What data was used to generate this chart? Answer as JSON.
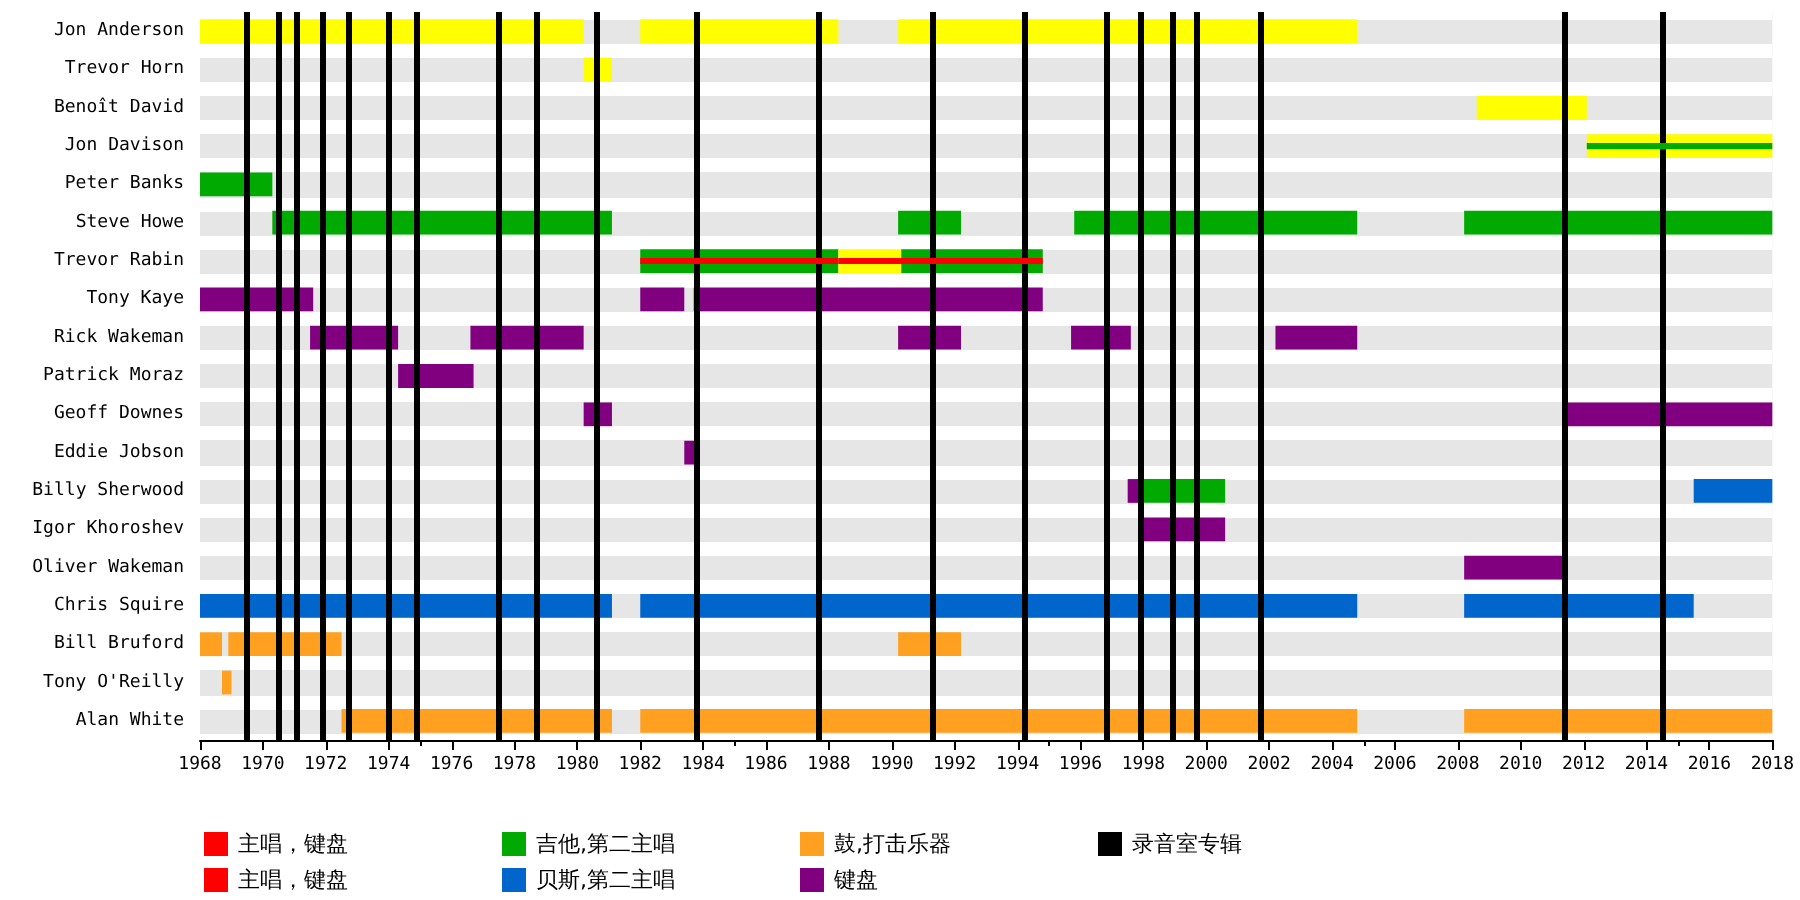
{
  "chart_data": {
    "type": "bar",
    "orientation": "horizontal",
    "grid": "y",
    "legend": "bottom",
    "categories": [
      "Jon Anderson",
      "Trevor Horn",
      "Benoît David",
      "Jon Davison",
      "Peter Banks",
      "Steve Howe",
      "Trevor Rabin",
      "Tony Kaye",
      "Rick Wakeman",
      "Patrick Moraz",
      "Geoff Downes",
      "Eddie Jobson",
      "Billy Sherwood",
      "Igor Khoroshev",
      "Oliver Wakeman",
      "Chris Squire",
      "Bill Bruford",
      "Tony O'Reilly",
      "Alan White"
    ],
    "xlim": [
      1968,
      2018
    ],
    "xticks": [
      1968,
      1970,
      1972,
      1974,
      1976,
      1978,
      1980,
      1982,
      1984,
      1986,
      1988,
      1990,
      1992,
      1994,
      1996,
      1998,
      2000,
      2002,
      2004,
      2006,
      2008,
      2010,
      2012,
      2014,
      2016,
      2018
    ],
    "series": [
      {
        "name": "主唱，键盘",
        "color": "#ff0000",
        "base": [
          null,
          null,
          null,
          null,
          null,
          null,
          1982.0,
          null,
          null,
          null,
          null,
          null,
          null,
          null,
          null,
          null,
          null,
          null,
          null
        ],
        "values": [
          null,
          null,
          null,
          null,
          null,
          null,
          6.3,
          null,
          null,
          null,
          null,
          null,
          null,
          null,
          null,
          null,
          null,
          null,
          null
        ]
      },
      {
        "name": "主唱，键盘",
        "color": "#ff0000",
        "base": [
          null,
          null,
          null,
          null,
          null,
          null,
          1988.3,
          null,
          null,
          null,
          null,
          null,
          null,
          null,
          null,
          null,
          null,
          null,
          null
        ],
        "values": [
          null,
          null,
          null,
          null,
          null,
          null,
          6.5,
          null,
          null,
          null,
          null,
          null,
          null,
          null,
          null,
          null,
          null,
          null,
          null
        ]
      },
      {
        "color": "#00aa00",
        "base": [
          null,
          null,
          null,
          2012.1,
          null,
          null,
          null,
          null,
          null,
          null,
          null,
          null,
          null,
          null,
          null,
          null,
          null,
          null,
          null
        ],
        "values": [
          null,
          null,
          null,
          5.9,
          null,
          null,
          null,
          null,
          null,
          null,
          null,
          null,
          null,
          null,
          null,
          null,
          null,
          null,
          null
        ]
      },
      {
        "name": "吉他,第二主唱",
        "color": "#00aa00",
        "base": [
          null,
          null,
          null,
          null,
          1968.0,
          1970.3,
          1982.0,
          null,
          null,
          null,
          null,
          null,
          1998.0,
          null,
          null,
          null,
          null,
          null,
          null
        ],
        "values": [
          null,
          null,
          null,
          null,
          2.3,
          10.8,
          6.3,
          null,
          null,
          null,
          null,
          null,
          2.6,
          null,
          null,
          null,
          null,
          null,
          null
        ]
      },
      {
        "name": "贝斯,第二主唱",
        "color": "#0066cc",
        "base": [
          null,
          null,
          null,
          null,
          null,
          null,
          null,
          null,
          null,
          null,
          null,
          null,
          2015.5,
          null,
          null,
          1968.0,
          null,
          null,
          null
        ],
        "values": [
          null,
          null,
          null,
          null,
          null,
          null,
          null,
          null,
          null,
          null,
          null,
          null,
          2.5,
          null,
          null,
          13.1,
          null,
          null,
          null
        ]
      },
      {
        "name": "鼓,打击乐器",
        "color": "#ffa020",
        "base": [
          null,
          null,
          null,
          null,
          null,
          null,
          null,
          null,
          null,
          null,
          null,
          null,
          null,
          null,
          null,
          null,
          1968.0,
          1968.7,
          1972.5
        ],
        "values": [
          null,
          null,
          null,
          null,
          null,
          null,
          null,
          null,
          null,
          null,
          null,
          null,
          null,
          null,
          null,
          null,
          0.7,
          0.3,
          8.6
        ]
      },
      {
        "name": "键盘",
        "color": "#800080",
        "base": [
          null,
          null,
          null,
          null,
          null,
          null,
          null,
          1968.0,
          1971.5,
          1974.3,
          1980.2,
          1983.4,
          1997.5,
          1998.0,
          2008.2,
          null,
          null,
          null,
          null
        ],
        "values": [
          null,
          null,
          null,
          null,
          null,
          null,
          null,
          3.6,
          2.8,
          2.4,
          0.9,
          0.4,
          0.5,
          2.6,
          3.2,
          null,
          null,
          null,
          null
        ]
      },
      {
        "color": "#ffff00",
        "base": [
          1968.0,
          1980.2,
          2008.6,
          2012.1,
          null,
          null,
          null,
          null,
          null,
          null,
          null,
          null,
          null,
          null,
          null,
          null,
          null,
          null,
          null
        ],
        "values": [
          12.2,
          0.9,
          3.5,
          5.9,
          null,
          null,
          null,
          null,
          null,
          null,
          null,
          null,
          null,
          null,
          null,
          null,
          null,
          null,
          null
        ]
      },
      {
        "color": "#ffff00",
        "base": [
          1982.0,
          null,
          null,
          null,
          null,
          null,
          1988.3,
          null,
          null,
          null,
          null,
          null,
          null,
          null,
          null,
          null,
          null,
          null,
          null
        ],
        "values": [
          6.3,
          null,
          null,
          null,
          null,
          null,
          2.0,
          null,
          null,
          null,
          null,
          null,
          null,
          null,
          null,
          null,
          null,
          null,
          null
        ]
      },
      {
        "color": "#ffff00",
        "base": [
          1990.2,
          null,
          null,
          null,
          null,
          null,
          null,
          null,
          null,
          null,
          null,
          null,
          null,
          null,
          null,
          null,
          null,
          null,
          null
        ],
        "values": [
          14.6,
          null,
          null,
          null,
          null,
          null,
          null,
          null,
          null,
          null,
          null,
          null,
          null,
          null,
          null,
          null,
          null,
          null,
          null
        ]
      },
      {
        "color": "#00aa00",
        "base": [
          null,
          null,
          null,
          null,
          null,
          1990.2,
          1990.3,
          null,
          null,
          null,
          null,
          null,
          null,
          null,
          null,
          null,
          null,
          null,
          null
        ],
        "values": [
          null,
          null,
          null,
          null,
          null,
          2.0,
          4.5,
          null,
          null,
          null,
          null,
          null,
          null,
          null,
          null,
          null,
          null,
          null,
          null
        ]
      },
      {
        "color": "#00aa00",
        "base": [
          null,
          null,
          null,
          null,
          null,
          1995.8,
          null,
          null,
          null,
          null,
          null,
          null,
          null,
          null,
          null,
          null,
          null,
          null,
          null
        ],
        "values": [
          null,
          null,
          null,
          null,
          null,
          9.0,
          null,
          null,
          null,
          null,
          null,
          null,
          null,
          null,
          null,
          null,
          null,
          null,
          null
        ]
      },
      {
        "color": "#00aa00",
        "base": [
          null,
          null,
          null,
          null,
          null,
          2008.2,
          null,
          null,
          null,
          null,
          null,
          null,
          null,
          null,
          null,
          null,
          null,
          null,
          null
        ],
        "values": [
          null,
          null,
          null,
          null,
          null,
          9.8,
          null,
          null,
          null,
          null,
          null,
          null,
          null,
          null,
          null,
          null,
          null,
          null,
          null
        ]
      },
      {
        "color": "#800080",
        "base": [
          null,
          null,
          null,
          null,
          null,
          null,
          null,
          1982.0,
          1976.6,
          null,
          2011.4,
          null,
          null,
          null,
          null,
          null,
          null,
          null,
          null
        ],
        "values": [
          null,
          null,
          null,
          null,
          null,
          null,
          null,
          1.4,
          3.6,
          null,
          6.6,
          null,
          null,
          null,
          null,
          null,
          null,
          null,
          null
        ]
      },
      {
        "color": "#800080",
        "base": [
          null,
          null,
          null,
          null,
          null,
          null,
          null,
          1983.7,
          1990.2,
          null,
          null,
          null,
          null,
          null,
          null,
          null,
          null,
          null,
          null
        ],
        "values": [
          null,
          null,
          null,
          null,
          null,
          null,
          null,
          11.1,
          2.0,
          null,
          null,
          null,
          null,
          null,
          null,
          null,
          null,
          null,
          null
        ]
      },
      {
        "color": "#800080",
        "base": [
          null,
          null,
          null,
          null,
          null,
          null,
          null,
          null,
          1995.7,
          null,
          null,
          null,
          null,
          null,
          null,
          null,
          null,
          null,
          null
        ],
        "values": [
          null,
          null,
          null,
          null,
          null,
          null,
          null,
          null,
          1.9,
          null,
          null,
          null,
          null,
          null,
          null,
          null,
          null,
          null,
          null
        ]
      },
      {
        "color": "#800080",
        "base": [
          null,
          null,
          null,
          null,
          null,
          null,
          null,
          null,
          2002.2,
          null,
          null,
          null,
          null,
          null,
          null,
          null,
          null,
          null,
          null
        ],
        "values": [
          null,
          null,
          null,
          null,
          null,
          null,
          null,
          null,
          2.6,
          null,
          null,
          null,
          null,
          null,
          null,
          null,
          null,
          null,
          null
        ]
      },
      {
        "color": "#0066cc",
        "base": [
          null,
          null,
          null,
          null,
          null,
          null,
          null,
          null,
          null,
          null,
          null,
          null,
          null,
          null,
          null,
          1982.0,
          null,
          null,
          null
        ],
        "values": [
          null,
          null,
          null,
          null,
          null,
          null,
          null,
          null,
          null,
          null,
          null,
          null,
          null,
          null,
          null,
          22.8,
          null,
          null,
          null
        ]
      },
      {
        "color": "#0066cc",
        "base": [
          null,
          null,
          null,
          null,
          null,
          null,
          null,
          null,
          null,
          null,
          null,
          null,
          null,
          null,
          null,
          2008.2,
          null,
          null,
          null
        ],
        "values": [
          null,
          null,
          null,
          null,
          null,
          null,
          null,
          null,
          null,
          null,
          null,
          null,
          null,
          null,
          null,
          7.3,
          null,
          null,
          null
        ]
      },
      {
        "color": "#ffa020",
        "base": [
          null,
          null,
          null,
          null,
          null,
          null,
          null,
          null,
          null,
          null,
          null,
          null,
          null,
          null,
          null,
          null,
          1968.9,
          null,
          1982.0
        ],
        "values": [
          null,
          null,
          null,
          null,
          null,
          null,
          null,
          null,
          null,
          null,
          null,
          null,
          null,
          null,
          null,
          null,
          3.6,
          null,
          22.8
        ]
      },
      {
        "color": "#ffa020",
        "base": [
          null,
          null,
          null,
          null,
          null,
          null,
          null,
          null,
          null,
          null,
          null,
          null,
          null,
          null,
          null,
          null,
          1990.2,
          null,
          2008.2
        ],
        "values": [
          null,
          null,
          null,
          null,
          null,
          null,
          null,
          null,
          null,
          null,
          null,
          null,
          null,
          null,
          null,
          null,
          2.0,
          null,
          9.8
        ]
      }
    ],
    "ref_lines": [
      {
        "axis": "x",
        "value": 1969.5,
        "label": "录音室专辑",
        "color": "#000000"
      },
      {
        "axis": "x",
        "value": 1970.5,
        "color": "#000000"
      },
      {
        "axis": "x",
        "value": 1971.1,
        "color": "#000000"
      },
      {
        "axis": "x",
        "value": 1971.9,
        "color": "#000000"
      },
      {
        "axis": "x",
        "value": 1972.7,
        "color": "#000000"
      },
      {
        "axis": "x",
        "value": 1974.0,
        "color": "#000000"
      },
      {
        "axis": "x",
        "value": 1974.9,
        "color": "#000000"
      },
      {
        "axis": "x",
        "value": 1977.5,
        "color": "#000000"
      },
      {
        "axis": "x",
        "value": 1978.7,
        "color": "#000000"
      },
      {
        "axis": "x",
        "value": 1980.6,
        "color": "#000000"
      },
      {
        "axis": "x",
        "value": 1983.8,
        "color": "#000000"
      },
      {
        "axis": "x",
        "value": 1987.7,
        "color": "#000000"
      },
      {
        "axis": "x",
        "value": 1991.3,
        "color": "#000000"
      },
      {
        "axis": "x",
        "value": 1994.2,
        "color": "#000000"
      },
      {
        "axis": "x",
        "value": 1996.8,
        "color": "#000000"
      },
      {
        "axis": "x",
        "value": 1997.9,
        "color": "#000000"
      },
      {
        "axis": "x",
        "value": 1998.9,
        "color": "#000000"
      },
      {
        "axis": "x",
        "value": 1999.7,
        "color": "#000000"
      },
      {
        "axis": "x",
        "value": 2001.7,
        "color": "#000000"
      },
      {
        "axis": "x",
        "value": 2011.4,
        "color": "#000000"
      },
      {
        "axis": "x",
        "value": 2014.5,
        "color": "#000000"
      }
    ]
  }
}
